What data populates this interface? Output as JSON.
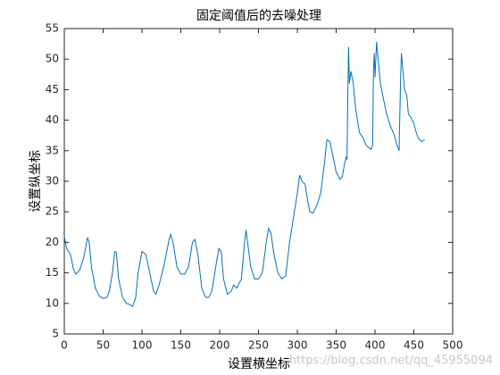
{
  "chart_data": {
    "type": "line",
    "title": "固定阈值后的去噪处理",
    "xlabel": "设置横坐标",
    "ylabel": "设置纵坐标",
    "watermark": "https://blog.csdn.net/qq_45955094",
    "color": "#0072bd",
    "xlim": [
      0,
      500
    ],
    "xticks": [
      0,
      50,
      100,
      150,
      200,
      250,
      300,
      350,
      400,
      450,
      500
    ],
    "ylim": [
      5,
      55
    ],
    "yticks": [
      5,
      10,
      15,
      20,
      25,
      30,
      35,
      40,
      45,
      50,
      55
    ],
    "grid": false,
    "x": [
      0,
      3,
      8,
      12,
      15,
      20,
      25,
      30,
      32,
      35,
      40,
      45,
      50,
      55,
      58,
      62,
      65,
      67,
      70,
      75,
      80,
      85,
      88,
      92,
      95,
      100,
      105,
      110,
      115,
      118,
      122,
      128,
      135,
      137,
      140,
      145,
      150,
      155,
      160,
      165,
      168,
      172,
      177,
      182,
      186,
      190,
      195,
      199,
      202,
      205,
      210,
      215,
      218,
      222,
      228,
      232,
      234,
      236,
      240,
      245,
      250,
      255,
      260,
      263,
      266,
      270,
      275,
      280,
      285,
      290,
      295,
      300,
      303,
      306,
      310,
      313,
      316,
      320,
      325,
      330,
      335,
      338,
      342,
      346,
      350,
      355,
      358,
      361,
      363,
      364,
      365,
      366,
      367,
      369,
      372,
      375,
      380,
      385,
      388,
      392,
      395,
      397,
      398,
      399,
      400,
      402,
      404,
      407,
      410,
      415,
      420,
      425,
      428,
      431,
      433,
      434,
      436,
      438,
      441,
      443,
      446,
      450,
      453,
      456,
      460,
      464
    ],
    "values": [
      21,
      19,
      18,
      15.5,
      14.8,
      15.5,
      17.5,
      20.8,
      20,
      16,
      12.5,
      11.2,
      10.8,
      11,
      12,
      15,
      18.5,
      18.3,
      14,
      11,
      10,
      9.8,
      9.5,
      11,
      15,
      18.5,
      18,
      15,
      12,
      11.5,
      13,
      16,
      20.5,
      21.3,
      20,
      16,
      14.8,
      14.8,
      16,
      20,
      20.5,
      18,
      12.5,
      11,
      11,
      12,
      16,
      19,
      18.5,
      14,
      11.5,
      12,
      13,
      12.5,
      14,
      20,
      22,
      20,
      16,
      14,
      14,
      15,
      20,
      22.3,
      21.5,
      18,
      15,
      14,
      14.5,
      20,
      24,
      28,
      31,
      30,
      29.5,
      27,
      25,
      24.8,
      26,
      28,
      33,
      36.8,
      36.5,
      34,
      31.5,
      30.3,
      30.8,
      33,
      34,
      33.5,
      44,
      52,
      46,
      48,
      46,
      42,
      38,
      37,
      36,
      35.5,
      35.2,
      36,
      48,
      51,
      47,
      52.8,
      50,
      46,
      44,
      41,
      39,
      37.5,
      36,
      35,
      47,
      51,
      48,
      45,
      44,
      41,
      40.5,
      39.5,
      38,
      37,
      36.5,
      36.8
    ]
  }
}
